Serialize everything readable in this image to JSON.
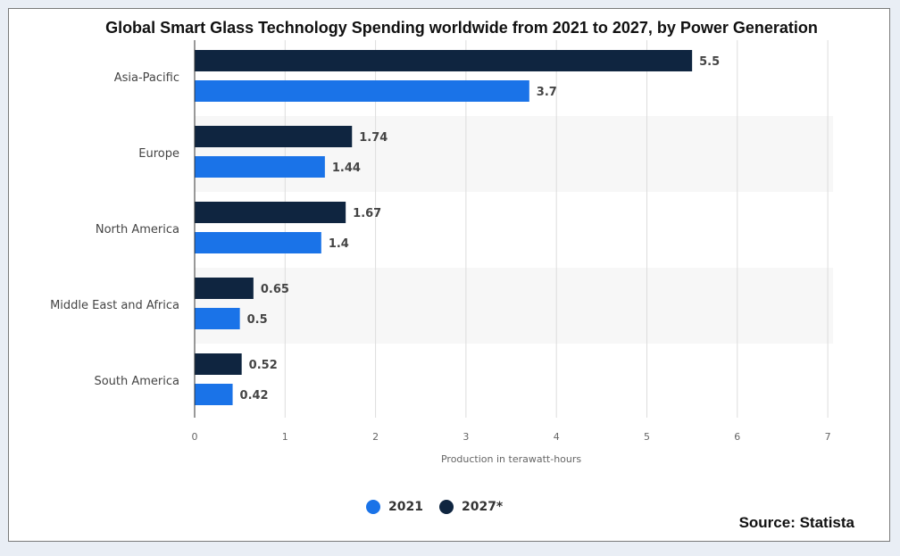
{
  "title": "Global Smart Glass Technology Spending worldwide from 2021 to 2027, by Power Generation",
  "source": "Source: Statista",
  "colors": {
    "2021": "#1a73e8",
    "2027*": "#0f2540",
    "band": "#f7f7f7",
    "grid": "#dddddd"
  },
  "chart_data": {
    "type": "bar",
    "orientation": "horizontal",
    "title": "Global Smart Glass Technology Spending worldwide from 2021 to 2027, by Power Generation",
    "xlabel": "Production in terawatt-hours",
    "ylabel": "",
    "xlim": [
      0,
      7
    ],
    "x_ticks": [
      "0",
      "1",
      "2",
      "3",
      "4",
      "5",
      "6",
      "7"
    ],
    "categories": [
      "Asia-Pacific",
      "Europe",
      "North America",
      "Middle East and Africa",
      "South America"
    ],
    "series": [
      {
        "name": "2027*",
        "values": [
          5.5,
          1.74,
          1.67,
          0.65,
          0.52
        ],
        "labels": [
          "5.5",
          "1.74",
          "1.67",
          "0.65",
          "0.52"
        ]
      },
      {
        "name": "2021",
        "values": [
          3.7,
          1.44,
          1.4,
          0.5,
          0.42
        ],
        "labels": [
          "3.7",
          "1.44",
          "1.4",
          "0.5",
          "0.42"
        ]
      }
    ],
    "grid": true,
    "legend_position": "bottom"
  },
  "legend": [
    {
      "label": "2021"
    },
    {
      "label": "2027*"
    }
  ]
}
